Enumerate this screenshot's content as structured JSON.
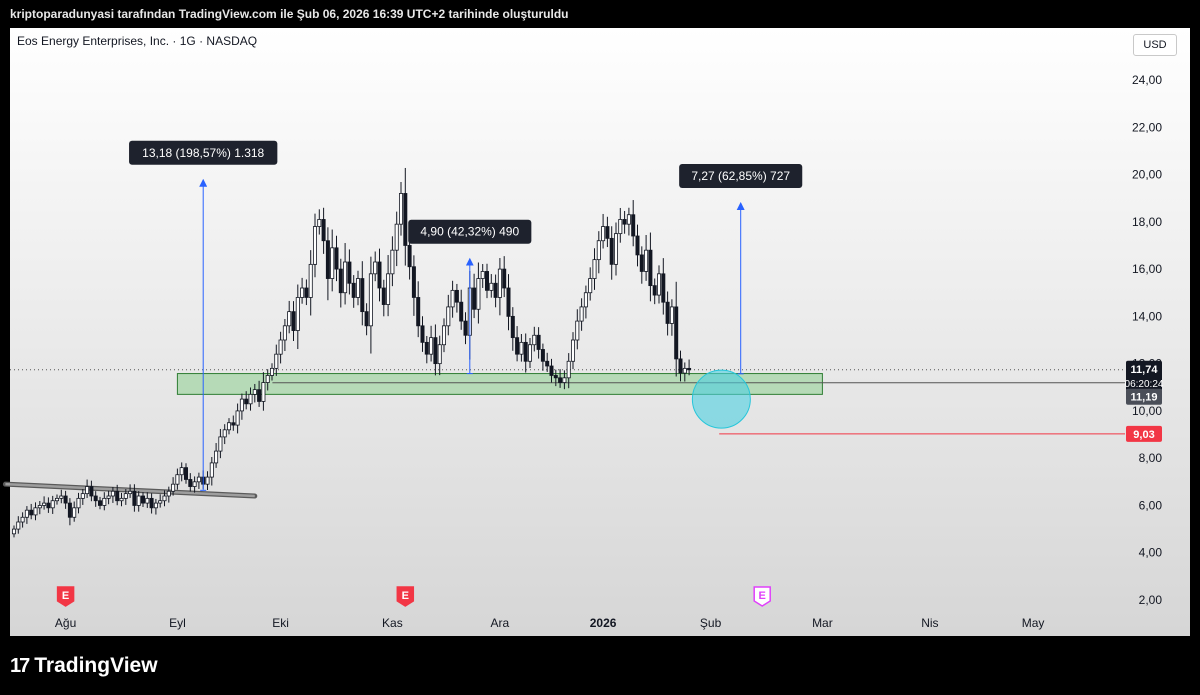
{
  "caption": "kriptoparadunyasi tarafından TradingView.com ile Şub 06, 2026 16:39 UTC+2 tarihinde oluşturuldu",
  "symbol_line": "Eos Energy Enterprises, Inc. · 1G · NASDAQ",
  "currency_button": "USD",
  "brand": "TradingView",
  "brand_icon": "tradingview-logo-icon",
  "colors": {
    "candle": "#131722",
    "zone_fill": "#a5d6a7",
    "zone_border": "#2e7d32",
    "trendline": "#808080",
    "measure": "#2962ff",
    "circle": "#4dd0e1",
    "stop_line": "#f23645",
    "earnings_red": "#f23645",
    "earnings_purple": "#e040fb"
  },
  "chart_data": {
    "type": "candlestick",
    "y_ticks": [
      "24,00",
      "22,00",
      "20,00",
      "18,00",
      "16,00",
      "14,00",
      "12,00",
      "10,00",
      "8,00",
      "6,00",
      "4,00",
      "2,00"
    ],
    "ylim": [
      1.5,
      26
    ],
    "x_ticks": [
      "Ağu",
      "Eyl",
      "Eki",
      "Kas",
      "Ara",
      "2026",
      "Şub",
      "Mar",
      "Nis",
      "May"
    ],
    "x_tick_index": [
      12,
      38,
      62,
      88,
      113,
      137,
      162,
      188,
      213,
      237
    ],
    "last_price": "11,74",
    "countdown": "06:20:24",
    "level_label": "11,19",
    "stop_label": "9,03",
    "measurements": [
      {
        "label": "13,18 (198,57%) 1.318",
        "bar": 44,
        "from": 6.64,
        "to": 19.82
      },
      {
        "label": "4,90 (42,32%) 490",
        "bar": 106,
        "from": 11.58,
        "to": 16.48
      },
      {
        "label": "7,27 (62,85%) 727",
        "bar": 169,
        "from": 11.57,
        "to": 18.84
      }
    ],
    "zone": {
      "from_bar": 38,
      "to_bar": 188,
      "low": 10.7,
      "high": 11.58
    },
    "zone_midline": 11.19,
    "stop_level": {
      "from_bar": 164,
      "value": 9.03
    },
    "trendline": {
      "x1": -2,
      "y1": 6.9,
      "x2": 56,
      "y2": 6.4
    },
    "circle": {
      "bar": 164.5,
      "price": 10.5
    },
    "earnings": [
      {
        "label": "E",
        "bar": 12,
        "kind": "past"
      },
      {
        "label": "E",
        "bar": 91,
        "kind": "past"
      },
      {
        "label": "E",
        "bar": 174,
        "kind": "upcoming"
      }
    ],
    "close_prices": [
      5.0,
      5.3,
      5.5,
      5.8,
      5.6,
      5.9,
      6.0,
      6.1,
      5.9,
      6.2,
      6.3,
      6.4,
      6.1,
      5.5,
      5.9,
      6.3,
      6.5,
      6.8,
      6.4,
      6.2,
      6.0,
      6.3,
      6.4,
      6.6,
      6.2,
      6.3,
      6.5,
      6.6,
      6.0,
      6.4,
      6.1,
      6.3,
      5.9,
      6.1,
      6.2,
      6.4,
      6.6,
      6.9,
      7.3,
      7.6,
      7.1,
      6.8,
      7.0,
      7.2,
      6.9,
      7.2,
      7.8,
      8.3,
      8.9,
      9.2,
      9.5,
      9.4,
      10.0,
      10.5,
      10.3,
      10.7,
      10.9,
      10.4,
      11.2,
      11.5,
      11.8,
      12.4,
      13.0,
      13.6,
      14.2,
      13.4,
      14.8,
      15.2,
      14.8,
      16.2,
      17.8,
      18.1,
      17.2,
      15.6,
      16.9,
      16.0,
      15.0,
      16.3,
      15.4,
      14.8,
      15.6,
      14.2,
      13.6,
      15.8,
      16.3,
      15.2,
      14.5,
      15.8,
      16.8,
      17.9,
      19.2,
      17.0,
      16.1,
      14.8,
      13.6,
      12.9,
      12.4,
      13.1,
      12.0,
      12.8,
      13.6,
      14.4,
      15.1,
      14.6,
      13.8,
      13.2,
      15.2,
      14.3,
      15.6,
      15.9,
      15.1,
      15.4,
      14.8,
      16.0,
      15.2,
      14.0,
      13.1,
      12.4,
      12.9,
      12.1,
      12.8,
      13.2,
      12.6,
      12.1,
      11.9,
      11.5,
      11.4,
      11.2,
      11.4,
      12.1,
      13.0,
      13.8,
      14.4,
      15.0,
      15.6,
      16.4,
      17.2,
      17.8,
      17.3,
      16.2,
      17.5,
      18.1,
      17.9,
      18.3,
      17.4,
      16.6,
      15.9,
      16.8,
      15.3,
      14.9,
      15.8,
      14.6,
      13.7,
      14.4,
      12.2,
      11.6,
      11.8,
      11.74
    ]
  }
}
